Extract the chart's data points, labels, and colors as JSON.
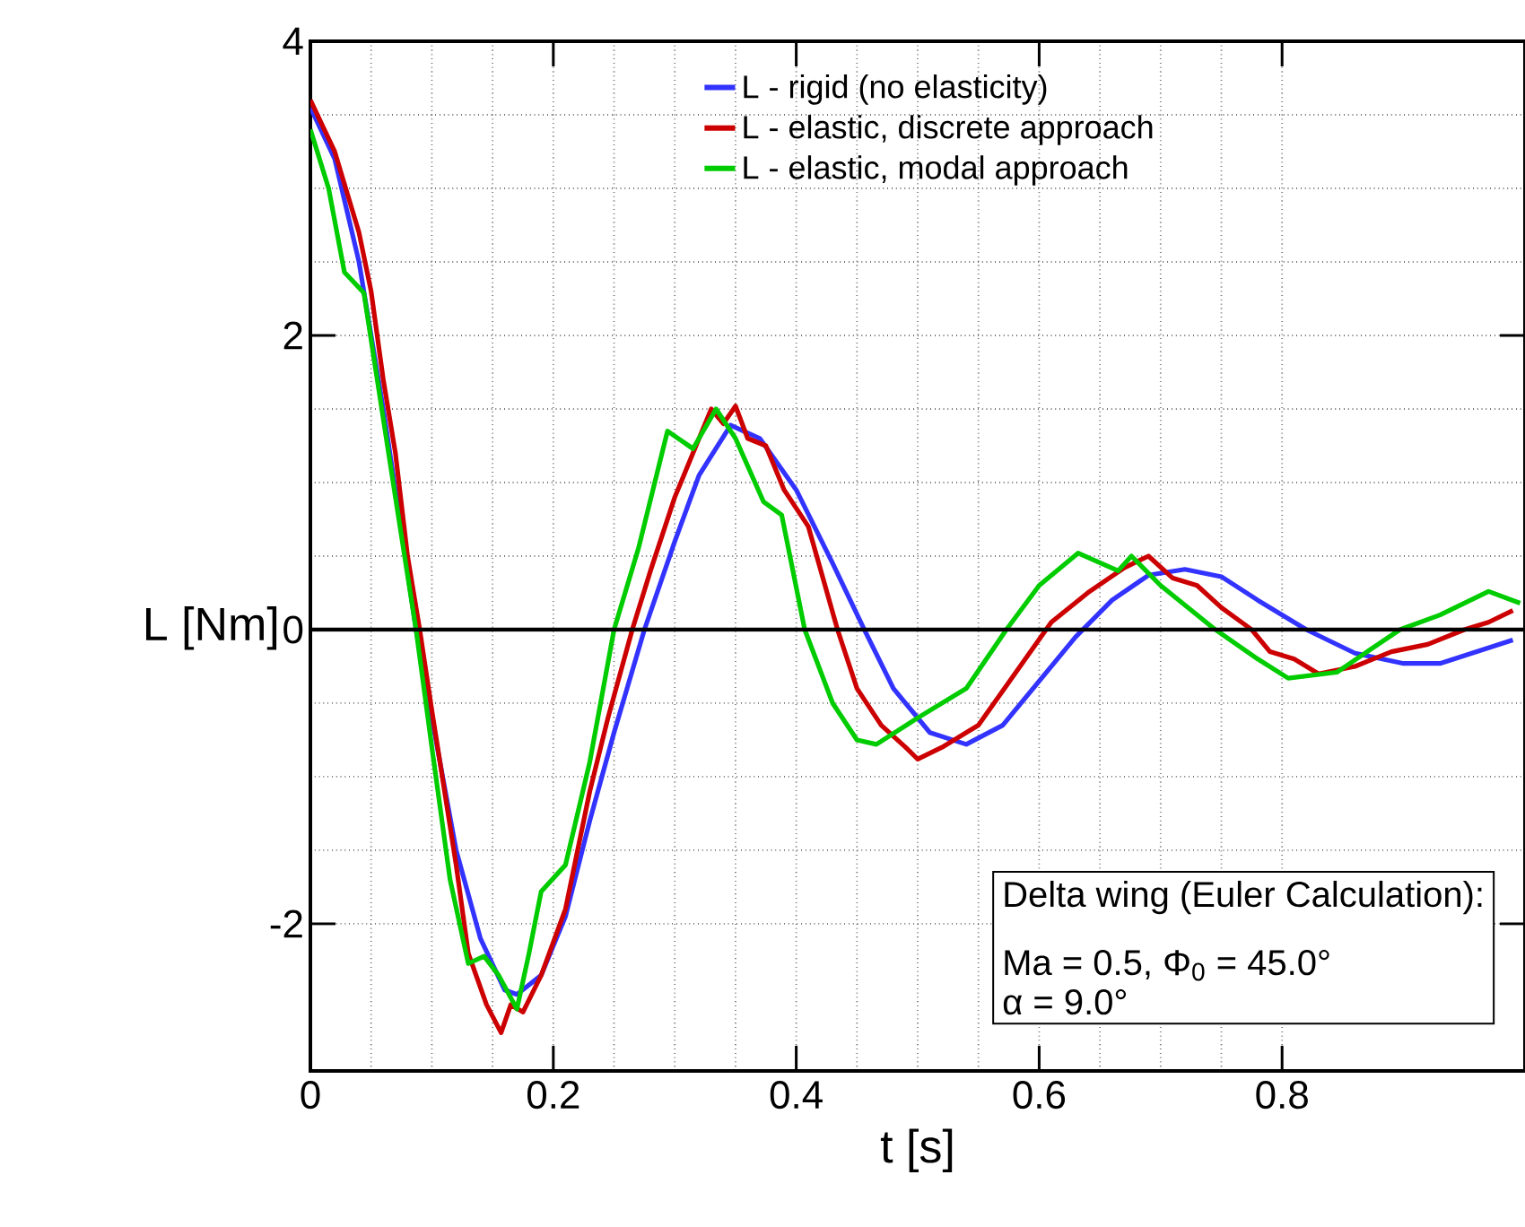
{
  "chart_data": {
    "type": "line",
    "xlabel": "t [s]",
    "ylabel": "L [Nm]",
    "xlim": [
      0,
      1
    ],
    "ylim": [
      -3,
      4
    ],
    "xticks": [
      0,
      0.2,
      0.4,
      0.6,
      0.8
    ],
    "yticks": [
      -2,
      0,
      2,
      4
    ],
    "grid": true,
    "legend": "top",
    "line_style": "solid",
    "ref_lines": [
      {
        "axis": "y",
        "value": 0,
        "color": "#000000"
      }
    ],
    "annotations": [
      "Delta wing (Euler Calculation):",
      "Ma = 0.5, Φ$_{0}$ = 45.0°",
      "α =  9.0°"
    ],
    "series": [
      {
        "name": "L - rigid (no elasticity)",
        "color": "#3333ff",
        "x": [
          0,
          0.02,
          0.04,
          0.05,
          0.06,
          0.07,
          0.087,
          0.1,
          0.12,
          0.14,
          0.16,
          0.17,
          0.19,
          0.21,
          0.23,
          0.25,
          0.275,
          0.3,
          0.32,
          0.346,
          0.37,
          0.4,
          0.43,
          0.456,
          0.48,
          0.51,
          0.54,
          0.57,
          0.6,
          0.63,
          0.66,
          0.69,
          0.72,
          0.75,
          0.78,
          0.82,
          0.86,
          0.9,
          0.93,
          0.96,
          0.99
        ],
        "values": [
          3.55,
          3.2,
          2.5,
          2.0,
          1.5,
          0.95,
          0,
          -0.6,
          -1.5,
          -2.1,
          -2.45,
          -2.48,
          -2.35,
          -1.95,
          -1.3,
          -0.7,
          0,
          0.6,
          1.05,
          1.39,
          1.3,
          0.95,
          0.45,
          0,
          -0.4,
          -0.7,
          -0.78,
          -0.65,
          -0.35,
          -0.05,
          0.2,
          0.37,
          0.41,
          0.36,
          0.2,
          0,
          -0.16,
          -0.23,
          -0.23,
          -0.15,
          -0.07
        ]
      },
      {
        "name": "L - elastic, discrete approach",
        "color": "#cc0000",
        "x": [
          0,
          0.02,
          0.04,
          0.05,
          0.06,
          0.07,
          0.08,
          0.09,
          0.1,
          0.12,
          0.13,
          0.145,
          0.157,
          0.165,
          0.175,
          0.19,
          0.21,
          0.23,
          0.245,
          0.265,
          0.28,
          0.3,
          0.32,
          0.33,
          0.34,
          0.35,
          0.36,
          0.375,
          0.39,
          0.41,
          0.434,
          0.45,
          0.47,
          0.49,
          0.5,
          0.52,
          0.55,
          0.58,
          0.61,
          0.64,
          0.67,
          0.69,
          0.71,
          0.73,
          0.75,
          0.775,
          0.79,
          0.81,
          0.83,
          0.86,
          0.89,
          0.92,
          0.95,
          0.97,
          0.99
        ],
        "values": [
          3.6,
          3.25,
          2.7,
          2.3,
          1.7,
          1.2,
          0.5,
          0,
          -0.55,
          -1.6,
          -2.2,
          -2.55,
          -2.74,
          -2.55,
          -2.6,
          -2.35,
          -1.9,
          -1.1,
          -0.6,
          0,
          0.4,
          0.9,
          1.3,
          1.5,
          1.4,
          1.52,
          1.3,
          1.25,
          0.95,
          0.7,
          0,
          -0.4,
          -0.65,
          -0.8,
          -0.88,
          -0.8,
          -0.65,
          -0.3,
          0.05,
          0.25,
          0.42,
          0.5,
          0.35,
          0.3,
          0.15,
          0,
          -0.15,
          -0.2,
          -0.3,
          -0.25,
          -0.15,
          -0.1,
          0,
          0.05,
          0.13
        ]
      },
      {
        "name": "L - elastic, modal approach",
        "color": "#00cc00",
        "x": [
          0,
          0.015,
          0.028,
          0.044,
          0.055,
          0.07,
          0.087,
          0.1,
          0.115,
          0.13,
          0.143,
          0.155,
          0.17,
          0.18,
          0.19,
          0.21,
          0.23,
          0.25,
          0.27,
          0.294,
          0.315,
          0.334,
          0.35,
          0.373,
          0.388,
          0.407,
          0.43,
          0.45,
          0.466,
          0.5,
          0.54,
          0.573,
          0.6,
          0.632,
          0.665,
          0.676,
          0.7,
          0.745,
          0.78,
          0.805,
          0.845,
          0.87,
          0.897,
          0.93,
          0.97,
          0.996
        ],
        "values": [
          3.4,
          3.0,
          2.43,
          2.29,
          1.7,
          0.9,
          0,
          -0.8,
          -1.7,
          -2.27,
          -2.22,
          -2.35,
          -2.58,
          -2.2,
          -1.78,
          -1.6,
          -0.9,
          0,
          0.55,
          1.35,
          1.23,
          1.5,
          1.3,
          0.87,
          0.78,
          0,
          -0.5,
          -0.75,
          -0.78,
          -0.6,
          -0.4,
          0,
          0.3,
          0.52,
          0.4,
          0.5,
          0.3,
          0,
          -0.2,
          -0.33,
          -0.29,
          -0.15,
          0,
          0.1,
          0.26,
          0.18
        ]
      }
    ]
  }
}
